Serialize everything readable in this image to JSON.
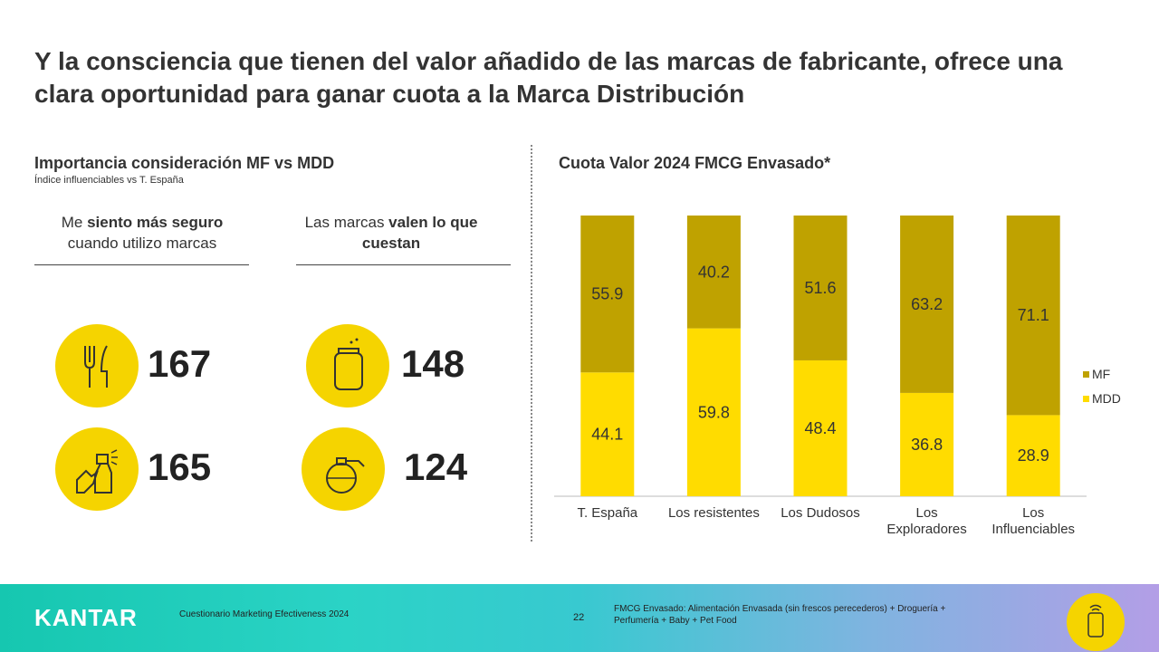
{
  "title": "Y la consciencia que tienen del valor añadido de las marcas de fabricante, ofrece una clara oportunidad para ganar cuota a la Marca Distribución",
  "left": {
    "title": "Importancia consideración MF vs MDD",
    "subtitle": "Índice influenciables vs T. España",
    "columns": [
      {
        "heading": [
          "Me ",
          "siento más seguro",
          " cuando utilizo marcas"
        ],
        "values": [
          167,
          165
        ]
      },
      {
        "heading": [
          "Las marcas ",
          "valen lo que cuestan"
        ],
        "values": [
          148,
          124
        ]
      }
    ]
  },
  "chart_data": {
    "type": "bar",
    "stacked": true,
    "title": "Cuota Valor 2024 FMCG Envasado*",
    "categories": [
      "T. España",
      "Los resistentes",
      "Los Dudosos",
      "Los\nExploradores",
      "Los\nInfluenciables"
    ],
    "series": [
      {
        "name": "MDD",
        "color": "#ffdc00",
        "values": [
          44.1,
          59.8,
          48.4,
          36.8,
          28.9
        ]
      },
      {
        "name": "MF",
        "color": "#bfa200",
        "values": [
          55.9,
          40.2,
          51.6,
          63.2,
          71.1
        ]
      }
    ],
    "legend": "right"
  },
  "footer": {
    "brand": "KANTAR",
    "survey": "Cuestionario Marketing Efectiveness 2024",
    "page": 22,
    "note": "FMCG Envasado: Alimentación Envasada (sin frescos perecederos) + Droguería + Perfumería + Baby + Pet Food"
  }
}
